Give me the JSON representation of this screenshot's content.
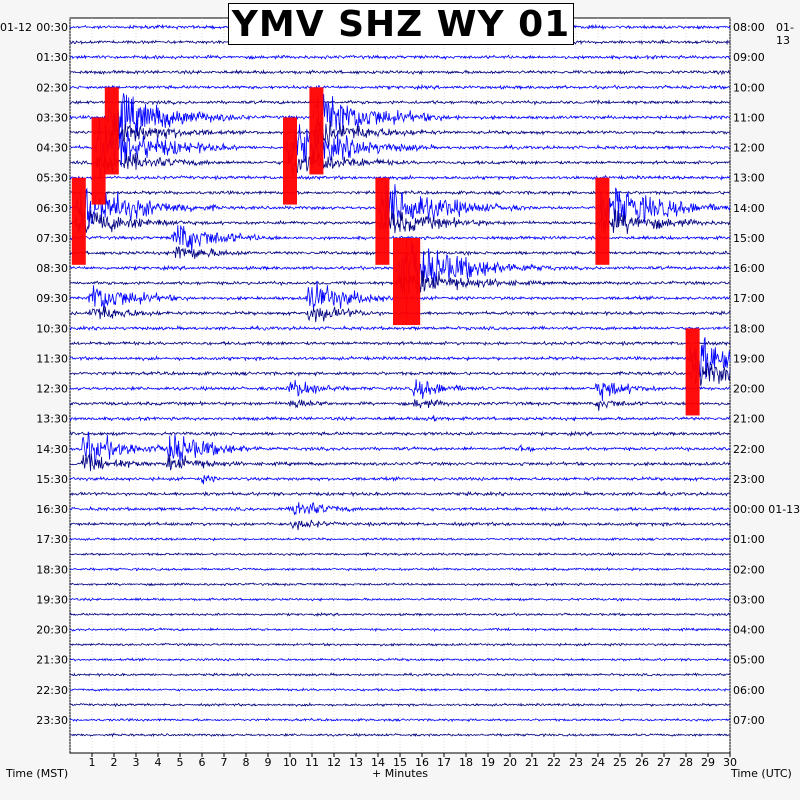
{
  "chart_data": {
    "type": "helicorder",
    "title": "YMV SHZ WY 01",
    "left_date": "01-12",
    "right_date": "01-13",
    "left_axis_label": "Time (MST)",
    "right_axis_label": "Time (UTC)",
    "x_axis_label": "+ Minutes",
    "x_ticks": [
      1,
      2,
      3,
      4,
      5,
      6,
      7,
      8,
      9,
      10,
      11,
      12,
      13,
      14,
      15,
      16,
      17,
      18,
      19,
      20,
      21,
      22,
      23,
      24,
      25,
      26,
      27,
      28,
      29,
      30
    ],
    "x_range": [
      0,
      30
    ],
    "grid": true,
    "rows_per_hour": 2,
    "left_time_labels": [
      "00:30",
      "01:30",
      "02:30",
      "03:30",
      "04:30",
      "05:30",
      "06:30",
      "07:30",
      "08:30",
      "09:30",
      "10:30",
      "11:30",
      "12:30",
      "13:30",
      "14:30",
      "15:30",
      "16:30",
      "17:30",
      "18:30",
      "19:30",
      "20:30",
      "21:30",
      "22:30",
      "23:30"
    ],
    "right_time_labels": [
      "08:00",
      "09:00",
      "10:00",
      "11:00",
      "12:00",
      "13:00",
      "14:00",
      "15:00",
      "16:00",
      "17:00",
      "18:00",
      "19:00",
      "20:00",
      "21:00",
      "22:00",
      "23:00",
      "00:00 01-13",
      "01:00",
      "02:00",
      "03:00",
      "04:00",
      "05:00",
      "06:00",
      "07:00"
    ],
    "trace_colors": [
      "#0000ff",
      "#000080"
    ],
    "clip_color": "#ff0000",
    "events": [
      {
        "row": 3,
        "minute": 1.9,
        "level": "clipped"
      },
      {
        "row": 4,
        "minute": 1.3,
        "level": "clipped"
      },
      {
        "row": 6,
        "minute": 0.4,
        "level": "clipped"
      },
      {
        "row": 4,
        "minute": 10.0,
        "level": "clipped"
      },
      {
        "row": 3,
        "minute": 11.2,
        "level": "clipped"
      },
      {
        "row": 6,
        "minute": 14.2,
        "level": "clipped"
      },
      {
        "row": 8,
        "minute": 15.6,
        "level": "clipped"
      },
      {
        "row": 8,
        "minute": 15.0,
        "level": "clipped"
      },
      {
        "row": 6,
        "minute": 24.2,
        "level": "clipped"
      },
      {
        "row": 11,
        "minute": 28.3,
        "level": "clipped"
      },
      {
        "row": 7,
        "minute": 4.8,
        "level": "large"
      },
      {
        "row": 9,
        "minute": 1.0,
        "level": "large"
      },
      {
        "row": 9,
        "minute": 10.9,
        "level": "large"
      },
      {
        "row": 14,
        "minute": 0.6,
        "level": "large"
      },
      {
        "row": 14,
        "minute": 4.5,
        "level": "large"
      },
      {
        "row": 12,
        "minute": 10.0,
        "level": "moderate"
      },
      {
        "row": 12,
        "minute": 15.7,
        "level": "moderate"
      },
      {
        "row": 16,
        "minute": 10.2,
        "level": "moderate"
      },
      {
        "row": 12,
        "minute": 24.0,
        "level": "moderate"
      },
      {
        "row": 13,
        "minute": 16.3,
        "level": "small"
      },
      {
        "row": 14,
        "minute": 20.5,
        "level": "small"
      },
      {
        "row": 0,
        "minute": 20.5,
        "level": "small"
      },
      {
        "row": 15,
        "minute": 6.0,
        "level": "small"
      }
    ]
  }
}
